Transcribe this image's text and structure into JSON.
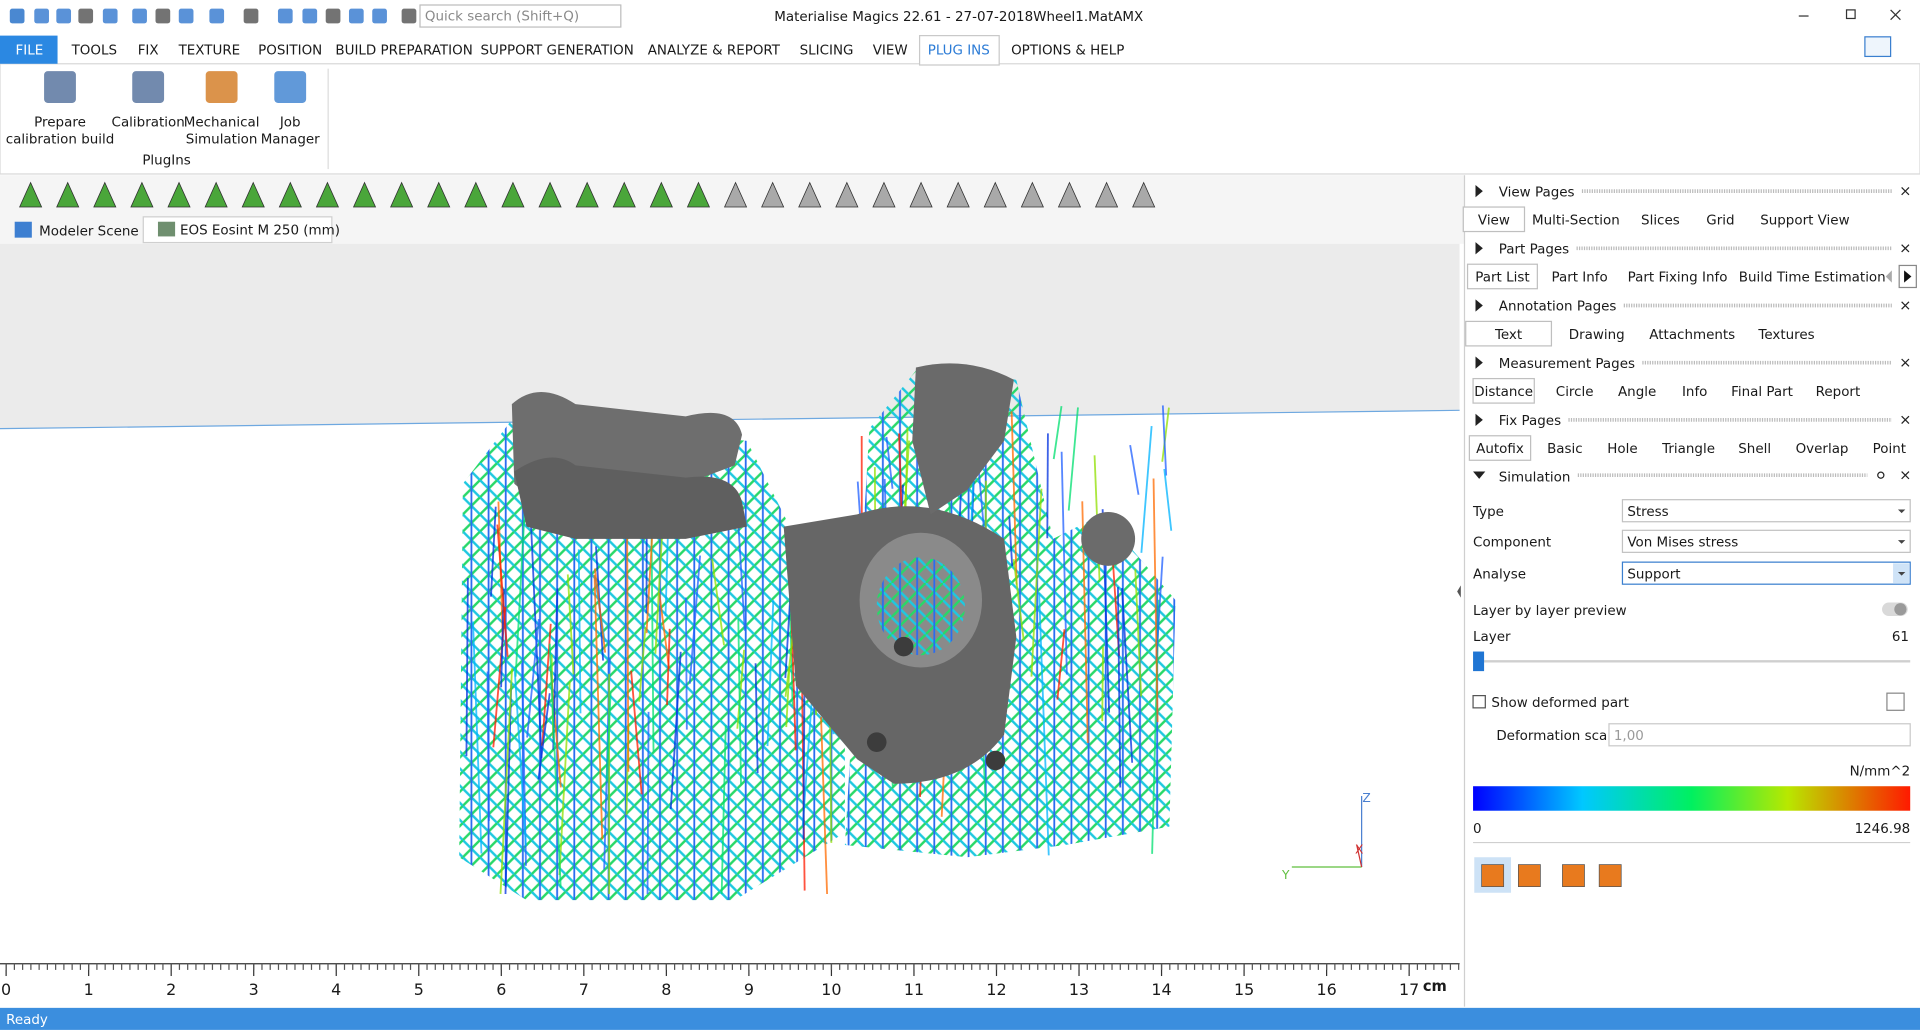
{
  "title_bar": {
    "search_placeholder": "Quick search (Shift+Q)",
    "title": "Materialise Magics 22.61 - 27-07-2018Wheel1.MatAMX"
  },
  "ribbon": {
    "tabs": [
      "FILE",
      "TOOLS",
      "FIX",
      "TEXTURE",
      "POSITION",
      "BUILD PREPARATION",
      "SUPPORT GENERATION",
      "ANALYZE & REPORT",
      "SLICING",
      "VIEW",
      "PLUG INS",
      "OPTIONS & HELP"
    ],
    "active_tab": 10,
    "buttons": [
      [
        "Prepare",
        "calibration build"
      ],
      [
        "Calibration"
      ],
      [
        "Mechanical",
        "Simulation"
      ],
      [
        "Job",
        "Manager"
      ]
    ],
    "group": "PlugIns"
  },
  "scene_tabs": [
    "Modeler Scene",
    "EOS Eosint M 250 (mm)"
  ],
  "viewport": {
    "axes": [
      "Z",
      "Y",
      "X"
    ]
  },
  "ruler": {
    "marks": [
      0,
      1,
      2,
      3,
      4,
      5,
      6,
      7,
      8,
      9,
      10,
      11,
      12,
      13,
      14,
      15,
      16,
      17
    ],
    "unit": "cm"
  },
  "panels": [
    {
      "title": "View Pages",
      "tabs": [
        "View",
        "Multi-Section",
        "Slices",
        "Grid",
        "Support View"
      ],
      "active": 0
    },
    {
      "title": "Part Pages",
      "tabs": [
        "Part List",
        "Part Info",
        "Part Fixing Info",
        "Build Time Estimation"
      ],
      "active": 0
    },
    {
      "title": "Annotation Pages",
      "tabs": [
        "Text",
        "Drawing",
        "Attachments",
        "Textures"
      ],
      "active": 0
    },
    {
      "title": "Measurement Pages",
      "tabs": [
        "Distance",
        "Circle",
        "Angle",
        "Info",
        "Final Part",
        "Report"
      ],
      "active": 0
    },
    {
      "title": "Fix Pages",
      "tabs": [
        "Autofix",
        "Basic",
        "Hole",
        "Triangle",
        "Shell",
        "Overlap",
        "Point"
      ],
      "active": 0
    }
  ],
  "simulation": {
    "title": "Simulation",
    "fields": [
      {
        "label": "Type",
        "value": "Stress"
      },
      {
        "label": "Component",
        "value": "Von Mises stress"
      },
      {
        "label": "Analyse",
        "value": "Support"
      }
    ],
    "layer_preview": "Layer by layer preview",
    "layer": {
      "label": "Layer",
      "value": 61
    },
    "show_deformed": "Show deformed part",
    "deformation_scale": {
      "label": "Deformation scale",
      "value": "1,00"
    },
    "legend": {
      "unit": "N/mm^2",
      "min": 0,
      "max": 1246.98
    }
  },
  "status": "Ready"
}
